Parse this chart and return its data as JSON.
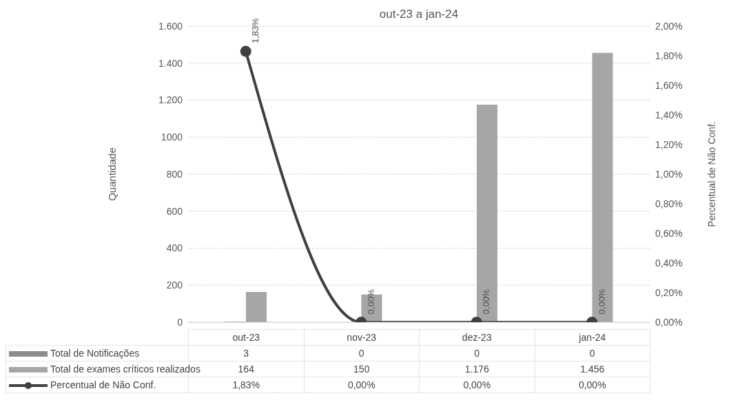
{
  "chart_data": {
    "type": "bar",
    "title": "out-23 a jan-24",
    "ylabel": "Quantidade",
    "y2label": "Percentual de Não Conf.",
    "categories": [
      "out-23",
      "nov-23",
      "dez-23",
      "jan-24"
    ],
    "series": [
      {
        "name": "Total de Notificações",
        "color": "#8c8c8c",
        "values": [
          3,
          0,
          0,
          0
        ],
        "value_labels": [
          "3",
          "0",
          "0",
          "0"
        ]
      },
      {
        "name": "Total de exames críticos realizados",
        "color": "#a6a6a6",
        "values": [
          164,
          150,
          1176,
          1456
        ],
        "value_labels": [
          "164",
          "150",
          "1.176",
          "1.456"
        ]
      },
      {
        "name": "Percentual de Não Conf.",
        "type": "line",
        "axis": "y2",
        "color": "#404040",
        "marker": "circle",
        "values": [
          1.83,
          0,
          0,
          0
        ],
        "value_labels": [
          "1,83%",
          "0,00%",
          "0,00%",
          "0,00%"
        ]
      }
    ],
    "ylim": [
      0,
      1600
    ],
    "yticks": [
      0,
      200,
      400,
      600,
      800,
      1000,
      {
        "value": 1200,
        "label": "1.200"
      },
      {
        "value": 1400,
        "label": "1.400"
      },
      {
        "value": 1600,
        "label": "1.600"
      }
    ],
    "y2lim": [
      0,
      2
    ],
    "y2ticks": [
      {
        "value": 0,
        "label": "0,00%"
      },
      {
        "value": 0.2,
        "label": "0,20%"
      },
      {
        "value": 0.4,
        "label": "0,40%"
      },
      {
        "value": 0.6,
        "label": "0,60%"
      },
      {
        "value": 0.8,
        "label": "0,80%"
      },
      {
        "value": 1,
        "label": "1,00%"
      },
      {
        "value": 1.2,
        "label": "1,20%"
      },
      {
        "value": 1.4,
        "label": "1,40%"
      },
      {
        "value": 1.6,
        "label": "1,60%"
      },
      {
        "value": 1.8,
        "label": "1,80%"
      },
      {
        "value": 2,
        "label": "2,00%"
      }
    ],
    "grid": "y",
    "legend": "bottom"
  }
}
